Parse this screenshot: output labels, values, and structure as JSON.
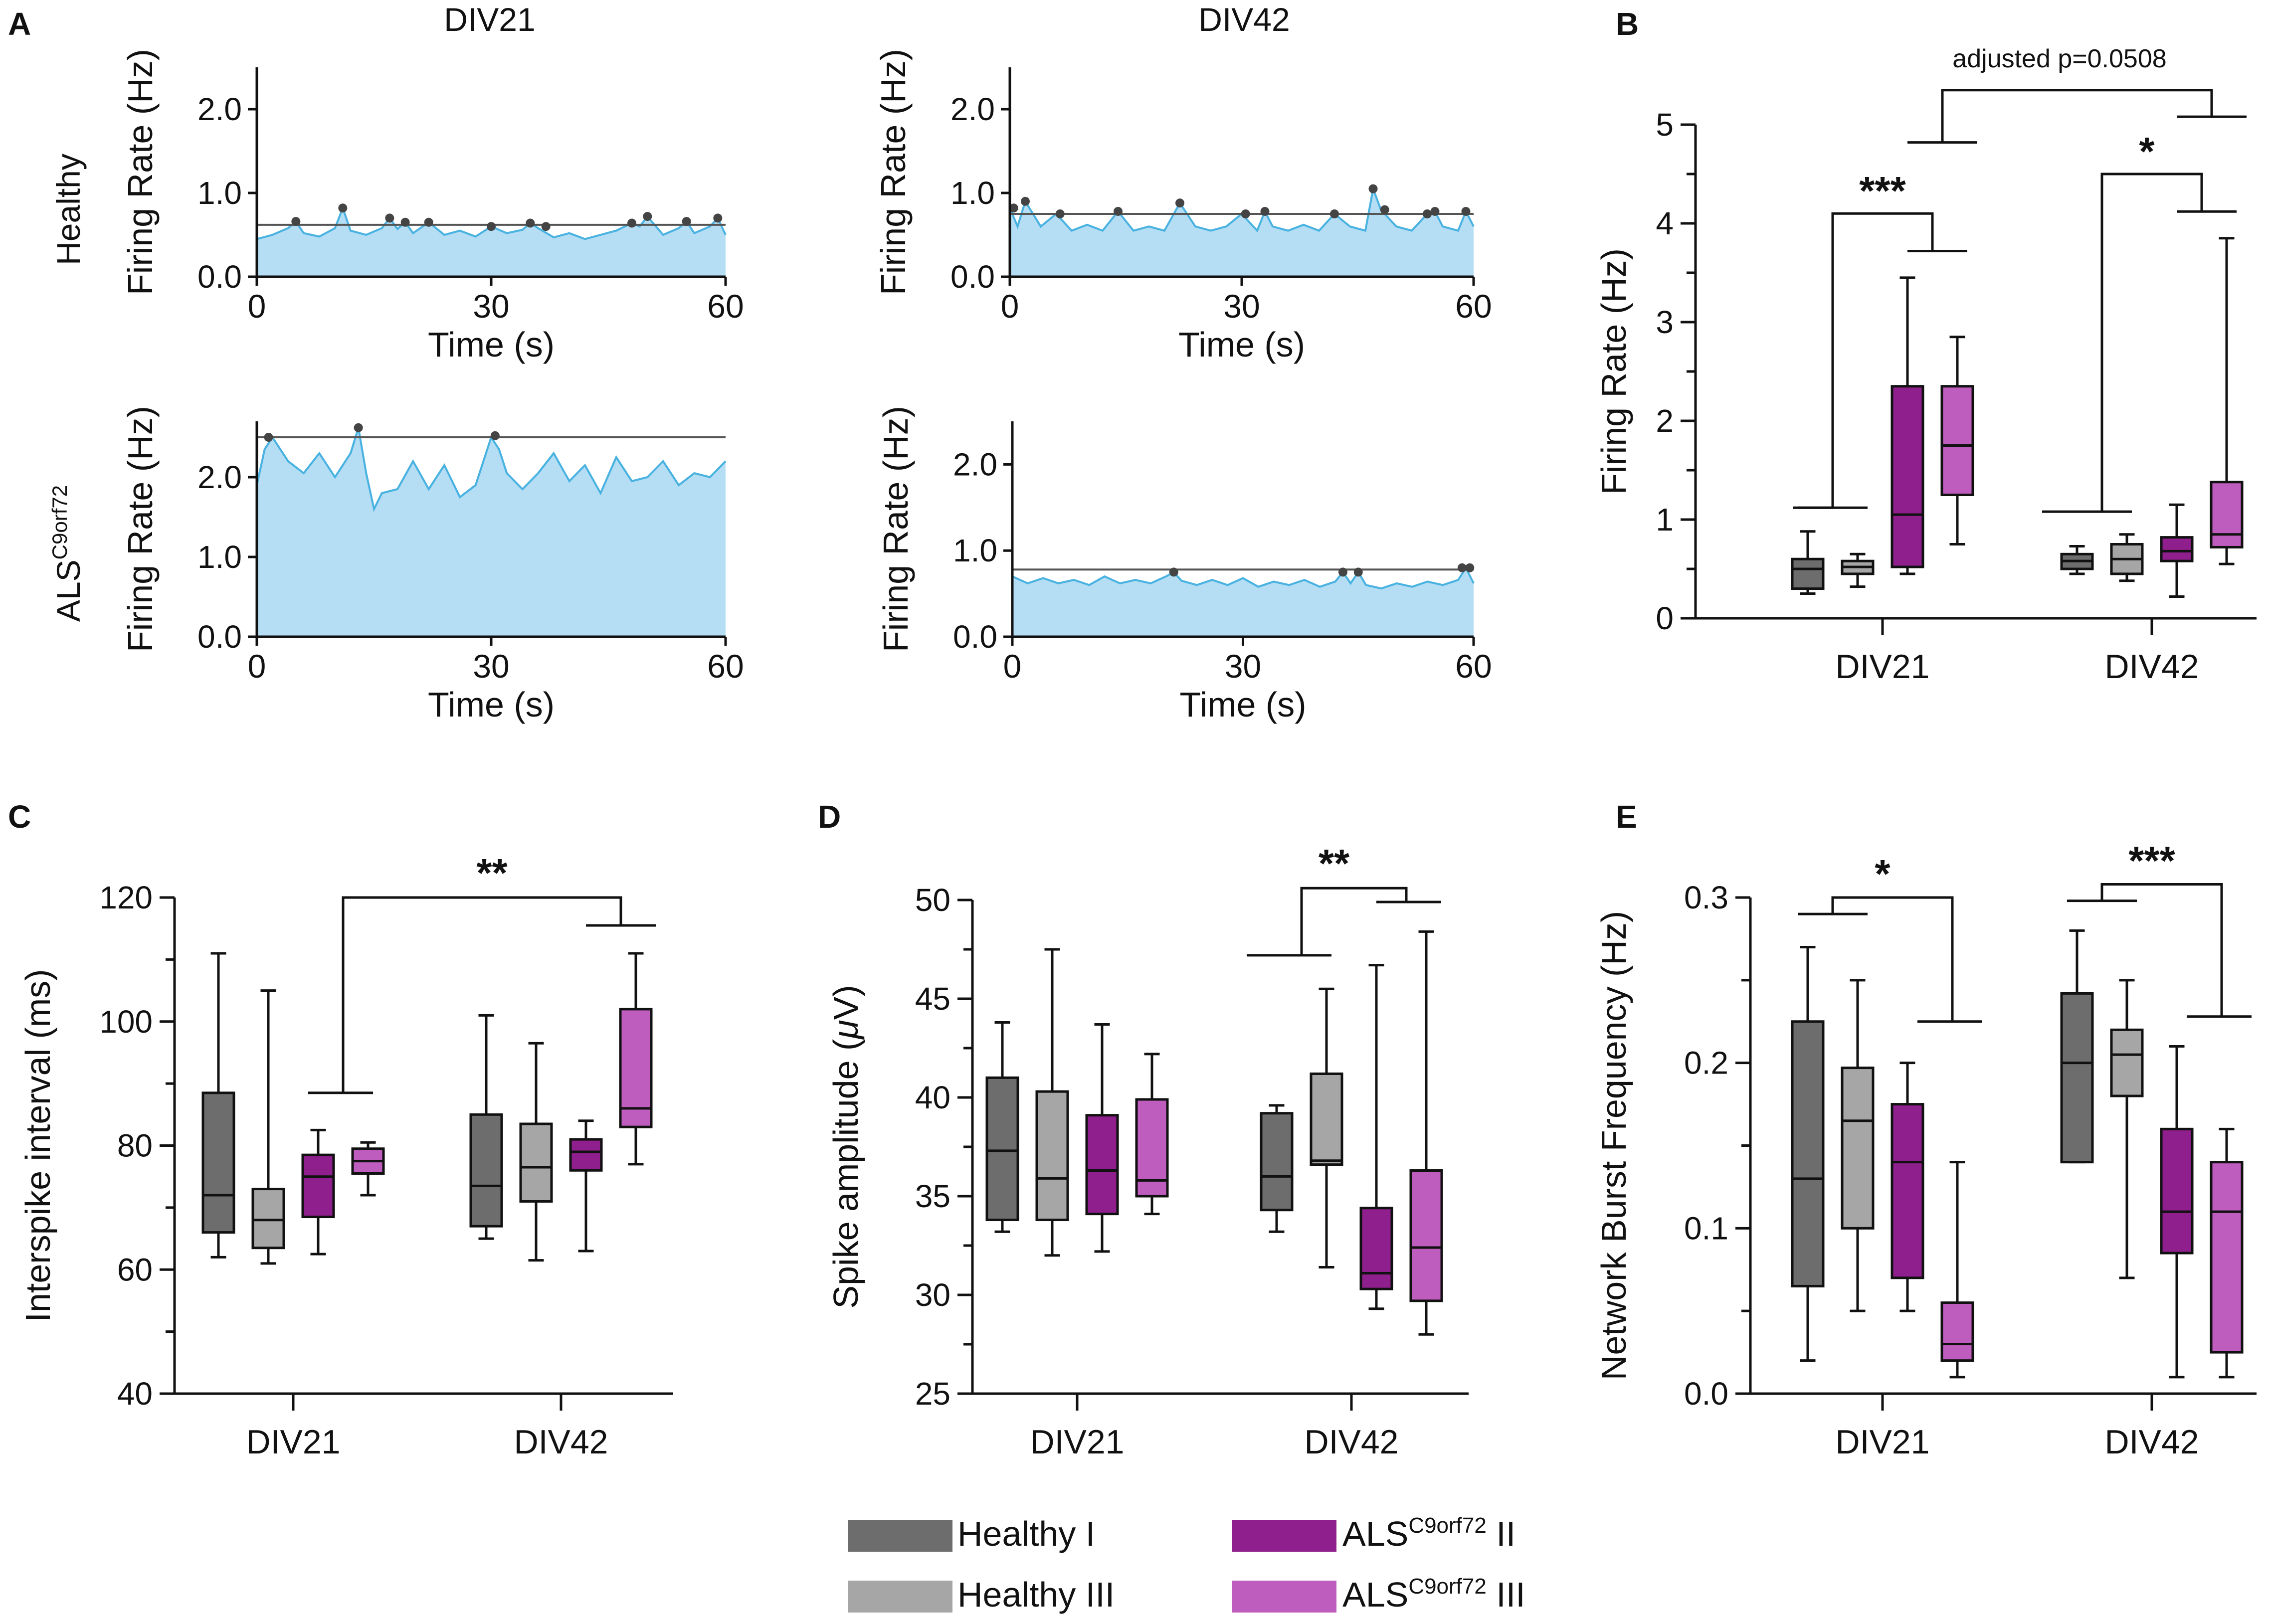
{
  "figure": {
    "panel_labels": {
      "A": "A",
      "B": "B",
      "C": "C",
      "D": "D",
      "E": "E"
    },
    "colors": {
      "healthy_i": "#6d6d6d",
      "healthy_iii": "#a6a6a6",
      "als_ii": "#8f1f8c",
      "als_iii": "#bf5dbf",
      "trace_fill": "#b5def5",
      "trace_line": "#49b2e0",
      "axis": "#111111"
    },
    "legend": {
      "healthy_i": "Healthy I",
      "healthy_iii": "Healthy III",
      "als_ii_base": "ALS",
      "als_ii_sup": "C9orf72",
      "als_ii_suffix": " II",
      "als_iii_base": "ALS",
      "als_iii_sup": "C9orf72",
      "als_iii_suffix": " III"
    }
  },
  "chart_data": [
    {
      "panel": "A",
      "type": "line",
      "col_titles": [
        "DIV21",
        "DIV42"
      ],
      "row_labels": {
        "healthy": "Healthy",
        "als_base": "ALS",
        "als_sup": "C9orf72"
      },
      "xlabel": "Time (s)",
      "ylabel": "Firing Rate (Hz)",
      "xlim": [
        0,
        60
      ],
      "xticks": [
        "0",
        "30",
        "60"
      ],
      "subplots": [
        {
          "id": "A1",
          "title": "DIV21",
          "row": "Healthy",
          "ylim": [
            0,
            2.5
          ],
          "yticks": [
            "0.0",
            "1.0",
            "2.0"
          ],
          "threshold": 0.62,
          "x": [
            0,
            2,
            4,
            5,
            6,
            8,
            10,
            11,
            12,
            14,
            16,
            17,
            18,
            19,
            20,
            22,
            24,
            26,
            28,
            30,
            32,
            34,
            35,
            36,
            38,
            40,
            42,
            44,
            46,
            48,
            49,
            50,
            52,
            54,
            55,
            56,
            58,
            59,
            60
          ],
          "y": [
            0.45,
            0.5,
            0.58,
            0.66,
            0.52,
            0.48,
            0.58,
            0.82,
            0.55,
            0.5,
            0.58,
            0.7,
            0.57,
            0.65,
            0.52,
            0.65,
            0.5,
            0.55,
            0.48,
            0.6,
            0.52,
            0.56,
            0.64,
            0.58,
            0.47,
            0.52,
            0.45,
            0.5,
            0.55,
            0.64,
            0.6,
            0.72,
            0.5,
            0.58,
            0.66,
            0.52,
            0.6,
            0.7,
            0.5
          ],
          "peaks": [
            {
              "x": 5,
              "y": 0.66
            },
            {
              "x": 11,
              "y": 0.82
            },
            {
              "x": 17,
              "y": 0.7
            },
            {
              "x": 19,
              "y": 0.65
            },
            {
              "x": 22,
              "y": 0.65
            },
            {
              "x": 30,
              "y": 0.6
            },
            {
              "x": 35,
              "y": 0.64
            },
            {
              "x": 37,
              "y": 0.6
            },
            {
              "x": 48,
              "y": 0.64
            },
            {
              "x": 50,
              "y": 0.72
            },
            {
              "x": 55,
              "y": 0.66
            },
            {
              "x": 59,
              "y": 0.7
            }
          ]
        },
        {
          "id": "A2",
          "title": "DIV42",
          "row": "Healthy",
          "ylim": [
            0,
            2.5
          ],
          "yticks": [
            "0.0",
            "1.0",
            "2.0"
          ],
          "threshold": 0.75,
          "x": [
            0,
            1,
            2,
            4,
            6,
            8,
            10,
            12,
            14,
            16,
            18,
            20,
            22,
            24,
            26,
            28,
            30,
            32,
            33,
            34,
            36,
            38,
            40,
            42,
            44,
            46,
            47,
            48,
            50,
            52,
            54,
            55,
            56,
            58,
            59,
            60
          ],
          "y": [
            0.82,
            0.6,
            0.9,
            0.6,
            0.75,
            0.55,
            0.62,
            0.55,
            0.78,
            0.55,
            0.6,
            0.55,
            0.88,
            0.6,
            0.55,
            0.6,
            0.75,
            0.55,
            0.78,
            0.6,
            0.55,
            0.62,
            0.55,
            0.75,
            0.6,
            0.55,
            1.05,
            0.8,
            0.6,
            0.55,
            0.75,
            0.78,
            0.6,
            0.55,
            0.78,
            0.6
          ],
          "peaks": [
            {
              "x": 0.5,
              "y": 0.82
            },
            {
              "x": 2,
              "y": 0.9
            },
            {
              "x": 6.5,
              "y": 0.75
            },
            {
              "x": 14,
              "y": 0.78
            },
            {
              "x": 22,
              "y": 0.88
            },
            {
              "x": 30.5,
              "y": 0.75
            },
            {
              "x": 33,
              "y": 0.78
            },
            {
              "x": 42,
              "y": 0.75
            },
            {
              "x": 47,
              "y": 1.05
            },
            {
              "x": 48.5,
              "y": 0.8
            },
            {
              "x": 54,
              "y": 0.75
            },
            {
              "x": 55,
              "y": 0.78
            },
            {
              "x": 59,
              "y": 0.78
            }
          ]
        },
        {
          "id": "A3",
          "title": "DIV21",
          "row": "ALS",
          "ylim": [
            0,
            2.7
          ],
          "yticks": [
            "0.0",
            "1.0",
            "2.0"
          ],
          "threshold": 2.5,
          "x": [
            0,
            1,
            2,
            4,
            6,
            8,
            10,
            12,
            13,
            14,
            15,
            16,
            18,
            20,
            22,
            24,
            26,
            28,
            30,
            31,
            32,
            34,
            36,
            38,
            40,
            42,
            44,
            46,
            48,
            50,
            52,
            54,
            56,
            58,
            60
          ],
          "y": [
            1.9,
            2.35,
            2.5,
            2.2,
            2.05,
            2.3,
            2.0,
            2.3,
            2.62,
            2.05,
            1.6,
            1.8,
            1.85,
            2.2,
            1.85,
            2.15,
            1.75,
            1.9,
            2.5,
            2.35,
            2.05,
            1.85,
            2.05,
            2.3,
            1.95,
            2.15,
            1.8,
            2.25,
            1.95,
            2.0,
            2.2,
            1.9,
            2.05,
            2.0,
            2.2
          ],
          "peaks": [
            {
              "x": 1.5,
              "y": 2.5
            },
            {
              "x": 13,
              "y": 2.62
            },
            {
              "x": 30.5,
              "y": 2.52
            }
          ]
        },
        {
          "id": "A4",
          "title": "DIV42",
          "row": "ALS",
          "ylim": [
            0,
            2.5
          ],
          "yticks": [
            "0.0",
            "1.0",
            "2.0"
          ],
          "threshold": 0.78,
          "x": [
            0,
            2,
            4,
            6,
            8,
            10,
            12,
            14,
            16,
            18,
            20,
            21,
            22,
            24,
            26,
            28,
            30,
            32,
            34,
            36,
            38,
            40,
            42,
            43,
            44,
            45,
            46,
            48,
            50,
            52,
            54,
            56,
            58,
            59,
            60
          ],
          "y": [
            0.7,
            0.62,
            0.68,
            0.62,
            0.66,
            0.6,
            0.7,
            0.62,
            0.66,
            0.62,
            0.7,
            0.75,
            0.65,
            0.6,
            0.66,
            0.6,
            0.68,
            0.58,
            0.64,
            0.6,
            0.66,
            0.58,
            0.64,
            0.75,
            0.62,
            0.75,
            0.6,
            0.56,
            0.62,
            0.58,
            0.64,
            0.6,
            0.66,
            0.8,
            0.62
          ],
          "peaks": [
            {
              "x": 21,
              "y": 0.75
            },
            {
              "x": 43,
              "y": 0.75
            },
            {
              "x": 45,
              "y": 0.75
            },
            {
              "x": 58.5,
              "y": 0.8
            },
            {
              "x": 59.5,
              "y": 0.8
            }
          ]
        }
      ]
    },
    {
      "panel": "B",
      "type": "box",
      "ylabel": "Firing Rate (Hz)",
      "ylim": [
        0,
        5
      ],
      "yticks": [
        "0",
        "1",
        "2",
        "3",
        "4",
        "5"
      ],
      "categories": [
        "DIV21",
        "DIV42"
      ],
      "series_names": [
        "Healthy I",
        "Healthy III",
        "ALSC9orf72 II",
        "ALSC9orf72 III"
      ],
      "boxes": [
        {
          "cat": "DIV21",
          "series": 0,
          "min": 0.25,
          "q1": 0.3,
          "median": 0.5,
          "q3": 0.6,
          "max": 0.88
        },
        {
          "cat": "DIV21",
          "series": 1,
          "min": 0.32,
          "q1": 0.45,
          "median": 0.52,
          "q3": 0.58,
          "max": 0.65
        },
        {
          "cat": "DIV21",
          "series": 2,
          "min": 0.45,
          "q1": 0.52,
          "median": 1.05,
          "q3": 2.35,
          "max": 3.45
        },
        {
          "cat": "DIV21",
          "series": 3,
          "min": 0.75,
          "q1": 1.25,
          "median": 1.75,
          "q3": 2.35,
          "max": 2.85
        },
        {
          "cat": "DIV42",
          "series": 0,
          "min": 0.45,
          "q1": 0.5,
          "median": 0.58,
          "q3": 0.65,
          "max": 0.73
        },
        {
          "cat": "DIV42",
          "series": 1,
          "min": 0.38,
          "q1": 0.45,
          "median": 0.6,
          "q3": 0.75,
          "max": 0.85
        },
        {
          "cat": "DIV42",
          "series": 2,
          "min": 0.22,
          "q1": 0.58,
          "median": 0.68,
          "q3": 0.82,
          "max": 1.15
        },
        {
          "cat": "DIV42",
          "series": 3,
          "min": 0.55,
          "q1": 0.72,
          "median": 0.85,
          "q3": 1.38,
          "max": 3.85
        }
      ],
      "annotations": [
        {
          "text": "***",
          "from_y": 1.12,
          "to_y": 3.72
        },
        {
          "text": "*",
          "from_y": 1.08,
          "to_y": 4.12
        },
        {
          "text": "adjusted p=0.0508",
          "from_y": 4.82,
          "to_y": 5.08
        }
      ]
    },
    {
      "panel": "C",
      "type": "box",
      "ylabel": "Interspike interval (ms)",
      "ylim": [
        40,
        120
      ],
      "yticks": [
        "40",
        "60",
        "80",
        "100",
        "120"
      ],
      "categories": [
        "DIV21",
        "DIV42"
      ],
      "series_names": [
        "Healthy I",
        "Healthy III",
        "ALSC9orf72 II",
        "ALSC9orf72 III"
      ],
      "boxes": [
        {
          "cat": "DIV21",
          "series": 0,
          "min": 62,
          "q1": 66,
          "median": 72,
          "q3": 88.5,
          "max": 111
        },
        {
          "cat": "DIV21",
          "series": 1,
          "min": 61,
          "q1": 63.5,
          "median": 68,
          "q3": 73,
          "max": 105
        },
        {
          "cat": "DIV21",
          "series": 2,
          "min": 62.5,
          "q1": 68.5,
          "median": 75,
          "q3": 78.5,
          "max": 82.5
        },
        {
          "cat": "DIV21",
          "series": 3,
          "min": 72,
          "q1": 75.5,
          "median": 77.5,
          "q3": 79.5,
          "max": 80.5
        },
        {
          "cat": "DIV42",
          "series": 0,
          "min": 65,
          "q1": 67,
          "median": 73.5,
          "q3": 85,
          "max": 101
        },
        {
          "cat": "DIV42",
          "series": 1,
          "min": 61.5,
          "q1": 71,
          "median": 76.5,
          "q3": 83.5,
          "max": 96.5
        },
        {
          "cat": "DIV42",
          "series": 2,
          "min": 63,
          "q1": 76,
          "median": 79,
          "q3": 81,
          "max": 84
        },
        {
          "cat": "DIV42",
          "series": 3,
          "min": 77,
          "q1": 83,
          "median": 86,
          "q3": 102,
          "max": 111
        }
      ],
      "annotations": [
        {
          "text": "**",
          "from_y": 88.5,
          "to_y": 115.5
        }
      ]
    },
    {
      "panel": "D",
      "type": "box",
      "ylabel": "Spike amplitude (μV)",
      "ylabel_base": "Spike amplitude (",
      "ylabel_mu": "μ",
      "ylabel_end": "V)",
      "ylim": [
        25,
        50
      ],
      "yticks": [
        "25",
        "30",
        "35",
        "40",
        "45",
        "50"
      ],
      "categories": [
        "DIV21",
        "DIV42"
      ],
      "series_names": [
        "Healthy I",
        "Healthy III",
        "ALSC9orf72 II",
        "ALSC9orf72 III"
      ],
      "boxes": [
        {
          "cat": "DIV21",
          "series": 0,
          "min": 33.2,
          "q1": 33.8,
          "median": 37.3,
          "q3": 41,
          "max": 43.8
        },
        {
          "cat": "DIV21",
          "series": 1,
          "min": 32,
          "q1": 33.8,
          "median": 35.9,
          "q3": 40.3,
          "max": 47.5
        },
        {
          "cat": "DIV21",
          "series": 2,
          "min": 32.2,
          "q1": 34.1,
          "median": 36.3,
          "q3": 39.1,
          "max": 43.7
        },
        {
          "cat": "DIV21",
          "series": 3,
          "min": 34.1,
          "q1": 35,
          "median": 35.8,
          "q3": 39.9,
          "max": 42.2
        },
        {
          "cat": "DIV42",
          "series": 0,
          "min": 33.2,
          "q1": 34.3,
          "median": 36,
          "q3": 39.2,
          "max": 39.6
        },
        {
          "cat": "DIV42",
          "series": 1,
          "min": 31.4,
          "q1": 36.6,
          "median": 36.8,
          "q3": 41.2,
          "max": 45.5
        },
        {
          "cat": "DIV42",
          "series": 2,
          "min": 29.3,
          "q1": 30.3,
          "median": 31.1,
          "q3": 34.4,
          "max": 46.7
        },
        {
          "cat": "DIV42",
          "series": 3,
          "min": 28,
          "q1": 29.7,
          "median": 32.4,
          "q3": 36.3,
          "max": 48.4
        }
      ],
      "annotations": [
        {
          "text": "**",
          "from_y": 47.2,
          "to_y": 49.9
        }
      ]
    },
    {
      "panel": "E",
      "type": "box",
      "ylabel": "Network Burst Frequency (Hz)",
      "ylim": [
        0,
        0.3
      ],
      "yticks": [
        "0.0",
        "0.1",
        "0.2",
        "0.3"
      ],
      "categories": [
        "DIV21",
        "DIV42"
      ],
      "series_names": [
        "Healthy I",
        "Healthy III",
        "ALSC9orf72 II",
        "ALSC9orf72 III"
      ],
      "boxes": [
        {
          "cat": "DIV21",
          "series": 0,
          "min": 0.02,
          "q1": 0.065,
          "median": 0.13,
          "q3": 0.225,
          "max": 0.27
        },
        {
          "cat": "DIV21",
          "series": 1,
          "min": 0.05,
          "q1": 0.1,
          "median": 0.165,
          "q3": 0.197,
          "max": 0.25
        },
        {
          "cat": "DIV21",
          "series": 2,
          "min": 0.05,
          "q1": 0.07,
          "median": 0.14,
          "q3": 0.175,
          "max": 0.2
        },
        {
          "cat": "DIV21",
          "series": 3,
          "min": 0.01,
          "q1": 0.02,
          "median": 0.03,
          "q3": 0.055,
          "max": 0.14
        },
        {
          "cat": "DIV42",
          "series": 0,
          "min": 0.14,
          "q1": 0.14,
          "median": 0.2,
          "q3": 0.242,
          "max": 0.28
        },
        {
          "cat": "DIV42",
          "series": 1,
          "min": 0.07,
          "q1": 0.18,
          "median": 0.205,
          "q3": 0.22,
          "max": 0.25
        },
        {
          "cat": "DIV42",
          "series": 2,
          "min": 0.01,
          "q1": 0.085,
          "median": 0.11,
          "q3": 0.16,
          "max": 0.21
        },
        {
          "cat": "DIV42",
          "series": 3,
          "min": 0.01,
          "q1": 0.025,
          "median": 0.11,
          "q3": 0.14,
          "max": 0.16
        }
      ],
      "annotations": [
        {
          "text": "*",
          "from_y": 0.29,
          "to_y": 0.225
        },
        {
          "text": "***",
          "from_y": 0.298,
          "to_y": 0.228
        }
      ]
    }
  ]
}
